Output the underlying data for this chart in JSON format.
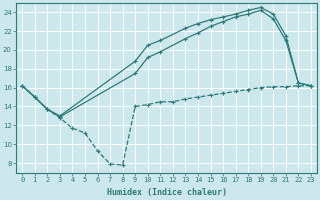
{
  "xlabel": "Humidex (Indice chaleur)",
  "bg_color": "#cce8ec",
  "line_color": "#2d7a7a",
  "grid_color": "#ffffff",
  "xlim": [
    -0.5,
    23.5
  ],
  "ylim": [
    7.0,
    25.0
  ],
  "yticks": [
    8,
    10,
    12,
    14,
    16,
    18,
    20,
    22,
    24
  ],
  "xticks": [
    0,
    1,
    2,
    3,
    4,
    5,
    6,
    7,
    8,
    9,
    10,
    11,
    12,
    13,
    14,
    15,
    16,
    17,
    18,
    19,
    20,
    21,
    22,
    23
  ],
  "line1_x": [
    0,
    1,
    2,
    3,
    9,
    10,
    11,
    13,
    14,
    15,
    16,
    17,
    18,
    19,
    20,
    21,
    22,
    23
  ],
  "line1_y": [
    16.2,
    15.0,
    13.7,
    13.0,
    18.8,
    20.5,
    21.0,
    22.3,
    22.8,
    23.2,
    23.5,
    23.8,
    24.2,
    24.5,
    23.8,
    21.5,
    16.5,
    16.2
  ],
  "line2_x": [
    0,
    1,
    2,
    3,
    9,
    10,
    11,
    13,
    14,
    15,
    16,
    17,
    18,
    19,
    20,
    21,
    22,
    23
  ],
  "line2_y": [
    16.2,
    15.0,
    13.7,
    12.9,
    17.5,
    19.2,
    19.8,
    21.2,
    21.8,
    22.5,
    23.0,
    23.5,
    23.8,
    24.2,
    23.3,
    21.0,
    16.5,
    16.2
  ],
  "line3_x": [
    0,
    1,
    2,
    3,
    4,
    5,
    6,
    7,
    8,
    9,
    10,
    11,
    12,
    13,
    14,
    15,
    16,
    17,
    18,
    19,
    20,
    21,
    22,
    23
  ],
  "line3_y": [
    16.2,
    15.0,
    13.7,
    12.8,
    11.7,
    11.2,
    9.3,
    7.9,
    7.8,
    14.0,
    14.2,
    14.5,
    14.5,
    14.8,
    15.0,
    15.2,
    15.4,
    15.6,
    15.8,
    16.0,
    16.1,
    16.1,
    16.2,
    16.2
  ]
}
